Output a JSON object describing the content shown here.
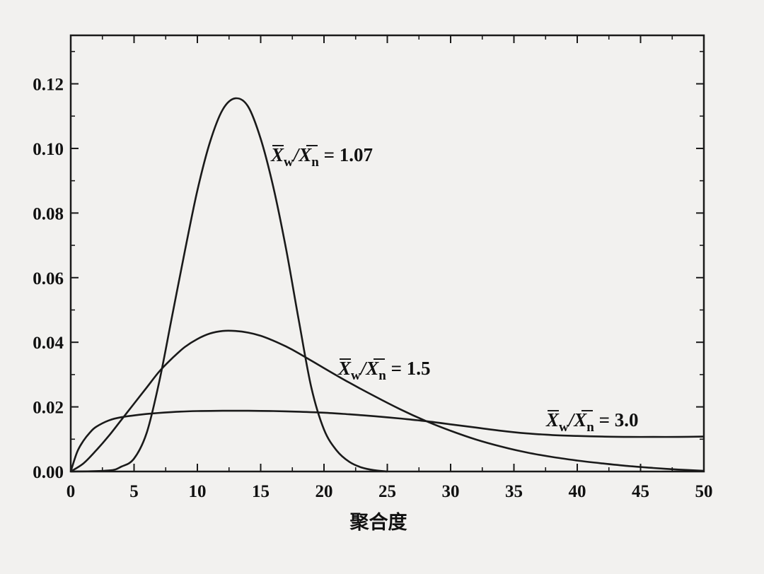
{
  "chart_data": {
    "type": "line",
    "title": "",
    "xlabel": "聚合度",
    "ylabel": "",
    "xlim": [
      0,
      50
    ],
    "ylim": [
      0,
      0.135
    ],
    "x_ticks": [
      "0",
      "5",
      "10",
      "15",
      "20",
      "25",
      "30",
      "35",
      "40",
      "45",
      "50"
    ],
    "y_ticks": [
      "0.00",
      "0.02",
      "0.04",
      "0.06",
      "0.08",
      "0.10",
      "0.12"
    ],
    "grid": false,
    "legend": "none",
    "line_color": "#1a1a1a",
    "series": [
      {
        "pdi": "1.07",
        "x": [
          0,
          3,
          4,
          5,
          6,
          7,
          8,
          9,
          10,
          11,
          12,
          13,
          14,
          15,
          16,
          17,
          18,
          19,
          20,
          21,
          22,
          23,
          24,
          25
        ],
        "y": [
          0,
          0.0003,
          0.0015,
          0.004,
          0.012,
          0.028,
          0.048,
          0.068,
          0.087,
          0.102,
          0.112,
          0.1155,
          0.113,
          0.103,
          0.088,
          0.069,
          0.047,
          0.026,
          0.013,
          0.0065,
          0.003,
          0.0012,
          0.0004,
          0
        ]
      },
      {
        "pdi": "1.5",
        "x": [
          0,
          1,
          2,
          3,
          4,
          5,
          6,
          7,
          8,
          9,
          10,
          11,
          12,
          13,
          14,
          15,
          16,
          17,
          18,
          20,
          22,
          24,
          26,
          28,
          30,
          32,
          34,
          36,
          38,
          40,
          42,
          44,
          46,
          48,
          50
        ],
        "y": [
          0,
          0.0025,
          0.0065,
          0.011,
          0.016,
          0.021,
          0.026,
          0.031,
          0.035,
          0.0385,
          0.041,
          0.0427,
          0.0435,
          0.0435,
          0.043,
          0.042,
          0.0405,
          0.0387,
          0.0366,
          0.032,
          0.0275,
          0.0233,
          0.0193,
          0.0157,
          0.0126,
          0.0099,
          0.0077,
          0.0059,
          0.0045,
          0.0034,
          0.0025,
          0.0017,
          0.0011,
          0.0006,
          0.0002
        ]
      },
      {
        "pdi": "3.0",
        "x": [
          0,
          0.5,
          1,
          1.5,
          2,
          3,
          4,
          6,
          8,
          10,
          12,
          14,
          16,
          18,
          20,
          22,
          24,
          26,
          28,
          30,
          32,
          34,
          36,
          38,
          40,
          42,
          44,
          46,
          48,
          50
        ],
        "y": [
          0,
          0.006,
          0.0095,
          0.012,
          0.0138,
          0.0158,
          0.0168,
          0.0178,
          0.0184,
          0.0187,
          0.0188,
          0.0188,
          0.0187,
          0.0185,
          0.0182,
          0.0177,
          0.0171,
          0.0164,
          0.0156,
          0.0146,
          0.0136,
          0.0126,
          0.0118,
          0.0113,
          0.011,
          0.0108,
          0.0107,
          0.0107,
          0.0107,
          0.0108
        ]
      }
    ],
    "annotations": [
      {
        "for": "1.07",
        "prefix": "X",
        "sub1": "w",
        "mid": "/X",
        "sub2": "n",
        "suffix": " = 1.07"
      },
      {
        "for": "1.5",
        "prefix": "X",
        "sub1": "w",
        "mid": "/X",
        "sub2": "n",
        "suffix": " = 1.5"
      },
      {
        "for": "3.0",
        "prefix": "X",
        "sub1": "w",
        "mid": "/X",
        "sub2": "n",
        "suffix": " = 3.0"
      }
    ]
  }
}
